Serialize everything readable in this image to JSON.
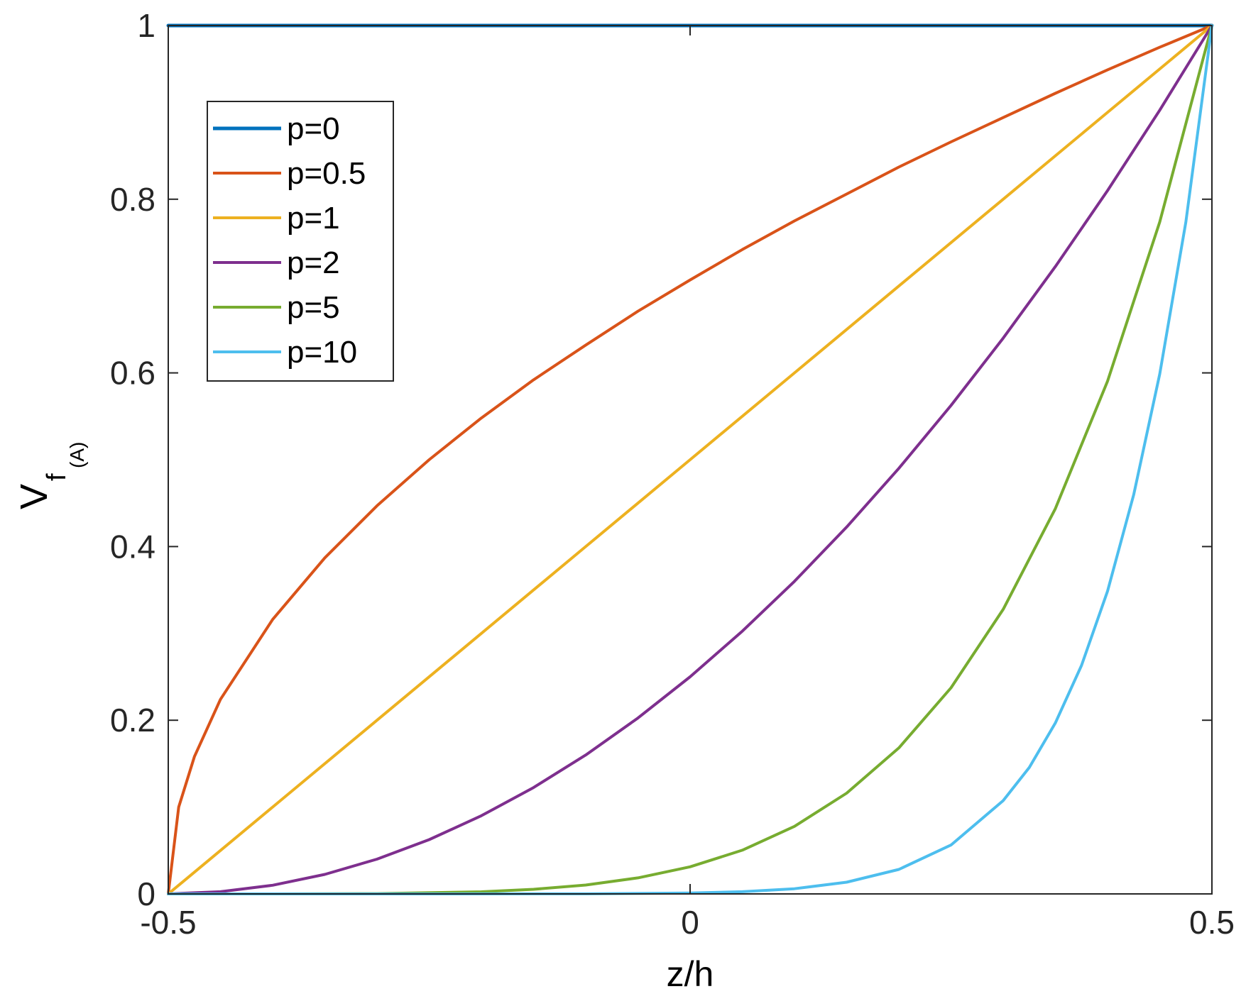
{
  "chart_data": {
    "type": "line",
    "xlabel": "z/h",
    "ylabel": {
      "main": "V",
      "sub": "f",
      "subsub": "(A)"
    },
    "xlim": [
      -0.5,
      0.5
    ],
    "ylim": [
      0,
      1
    ],
    "x_ticks": [
      -0.5,
      0,
      0.5
    ],
    "x_tick_labels": [
      "-0.5",
      "0",
      "0.5"
    ],
    "y_ticks": [
      0,
      0.2,
      0.4,
      0.6,
      0.8,
      1
    ],
    "y_tick_labels": [
      "0",
      "0.2",
      "0.4",
      "0.6",
      "0.8",
      "1"
    ],
    "grid": false,
    "legend_position": "top-left",
    "series": [
      {
        "name": "p=0",
        "color": "#0072BD",
        "x": [
          -0.5,
          -0.4,
          -0.3,
          -0.2,
          -0.1,
          0,
          0.1,
          0.2,
          0.3,
          0.4,
          0.5
        ],
        "y": [
          1,
          1,
          1,
          1,
          1,
          1,
          1,
          1,
          1,
          1,
          1
        ]
      },
      {
        "name": "p=0.5",
        "color": "#D95319",
        "x": [
          -0.5,
          -0.49,
          -0.475,
          -0.45,
          -0.4,
          -0.35,
          -0.3,
          -0.25,
          -0.2,
          -0.15,
          -0.1,
          -0.05,
          0,
          0.05,
          0.1,
          0.15,
          0.2,
          0.25,
          0.3,
          0.35,
          0.4,
          0.45,
          0.5
        ],
        "y": [
          0,
          0.1,
          0.158,
          0.224,
          0.316,
          0.387,
          0.447,
          0.5,
          0.548,
          0.592,
          0.632,
          0.671,
          0.707,
          0.742,
          0.775,
          0.806,
          0.837,
          0.866,
          0.894,
          0.922,
          0.949,
          0.975,
          1
        ]
      },
      {
        "name": "p=1",
        "color": "#EDB120",
        "x": [
          -0.5,
          -0.4,
          -0.3,
          -0.2,
          -0.1,
          0,
          0.1,
          0.2,
          0.3,
          0.4,
          0.5
        ],
        "y": [
          0,
          0.1,
          0.2,
          0.3,
          0.4,
          0.5,
          0.6,
          0.7,
          0.8,
          0.9,
          1
        ]
      },
      {
        "name": "p=2",
        "color": "#7E2F8E",
        "x": [
          -0.5,
          -0.45,
          -0.4,
          -0.35,
          -0.3,
          -0.25,
          -0.2,
          -0.15,
          -0.1,
          -0.05,
          0,
          0.05,
          0.1,
          0.15,
          0.2,
          0.25,
          0.3,
          0.35,
          0.4,
          0.45,
          0.5
        ],
        "y": [
          0,
          0.0025,
          0.01,
          0.0225,
          0.04,
          0.0625,
          0.09,
          0.1225,
          0.16,
          0.2025,
          0.25,
          0.3025,
          0.36,
          0.4225,
          0.49,
          0.5625,
          0.64,
          0.7225,
          0.81,
          0.9025,
          1
        ]
      },
      {
        "name": "p=5",
        "color": "#77AC30",
        "x": [
          -0.5,
          -0.4,
          -0.3,
          -0.2,
          -0.15,
          -0.1,
          -0.05,
          0,
          0.05,
          0.1,
          0.15,
          0.2,
          0.25,
          0.3,
          0.35,
          0.4,
          0.45,
          0.5
        ],
        "y": [
          0,
          1e-05,
          0.00032,
          0.00243,
          0.0053,
          0.01024,
          0.01845,
          0.03125,
          0.0503,
          0.07776,
          0.116,
          0.16807,
          0.2373,
          0.32768,
          0.4437,
          0.59049,
          0.7738,
          1
        ]
      },
      {
        "name": "p=10",
        "color": "#4DBEEE",
        "x": [
          -0.5,
          -0.3,
          -0.1,
          0,
          0.05,
          0.1,
          0.15,
          0.2,
          0.25,
          0.3,
          0.325,
          0.35,
          0.375,
          0.4,
          0.425,
          0.45,
          0.475,
          0.5
        ],
        "y": [
          0,
          0,
          0.0001,
          0.001,
          0.0025,
          0.006,
          0.0135,
          0.0282,
          0.0563,
          0.1074,
          0.1456,
          0.1969,
          0.2631,
          0.3487,
          0.4596,
          0.5987,
          0.7738,
          1
        ]
      }
    ]
  }
}
